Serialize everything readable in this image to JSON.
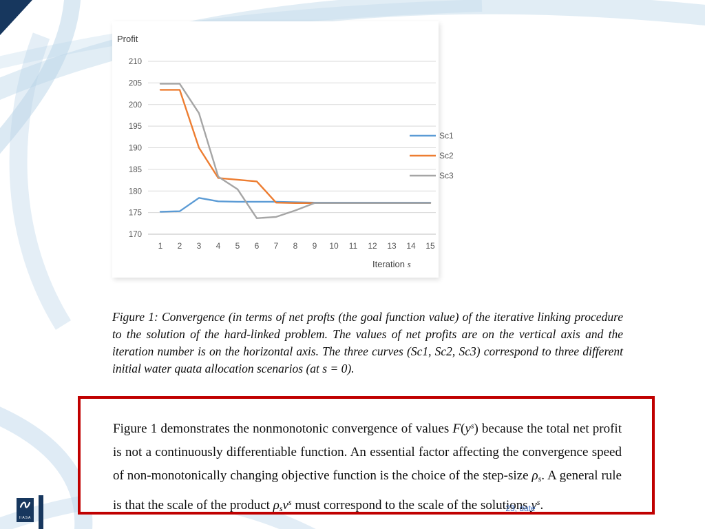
{
  "slide": {
    "footer_text": "23, date",
    "logo_text": "IIASA"
  },
  "chart_data": {
    "type": "line",
    "title": "Profit",
    "xlabel": "Iteration s",
    "xlabel_main": "Iteration",
    "xlabel_var": "s",
    "ylabel": "Profit",
    "x": [
      1,
      2,
      3,
      4,
      5,
      6,
      7,
      8,
      9,
      10,
      11,
      12,
      13,
      14,
      15
    ],
    "ylim": [
      170,
      210
    ],
    "yticks": [
      170,
      175,
      180,
      185,
      190,
      195,
      200,
      205,
      210
    ],
    "grid": "horizontal",
    "legend_position": "right",
    "series": [
      {
        "name": "Sc1",
        "color": "#5B9BD5",
        "values": [
          175.2,
          175.3,
          178.4,
          177.6,
          177.5,
          177.5,
          177.5,
          177.4,
          177.3,
          177.3,
          177.3,
          177.3,
          177.3,
          177.3,
          177.3
        ]
      },
      {
        "name": "Sc2",
        "color": "#ED7D31",
        "values": [
          203.4,
          203.4,
          190,
          183,
          182.6,
          182.2,
          177.3,
          177.2,
          177.2,
          177.2,
          177.2,
          177.2,
          177.2,
          177.2,
          177.2
        ]
      },
      {
        "name": "Sc3",
        "color": "#A5A5A5",
        "values": [
          204.8,
          204.8,
          198,
          183.3,
          180.4,
          173.7,
          174,
          175.5,
          177.2,
          177.2,
          177.2,
          177.2,
          177.2,
          177.2,
          177.2
        ]
      }
    ]
  },
  "caption": {
    "text": "Figure 1: Convergence (in terms of net profts (the goal function value) of the iterative linking procedure to the solution of the hard-linked problem. The values of net profits are on the vertical axis and the iteration number is on the horizontal axis. The three curves (Sc1, Sc2, Sc3) correspond to three different initial water quata allocation scenarios (at s = 0)."
  },
  "note": {
    "parts": {
      "p0": "Figure 1 demonstrates the nonmonotonic convergence of values ",
      "p1": "F",
      "p2": "(",
      "p3": "y",
      "p4": "s",
      "p5": ") because the total net profit is not a continuously differentiable function. An essential factor affecting the convergence speed of non-monotonically changing objective function is the choice of the step-size ",
      "p6": "ρ",
      "p7": "s",
      "p8": ". A general rule is that the scale of the product ",
      "p9": "ρ",
      "p10": "s",
      "p11": "ν",
      "p12": "s",
      "p13": " must correspond to the scale of the solutions ",
      "p14": "y",
      "p15": "s",
      "p16": "."
    }
  },
  "colors": {
    "note_border_red": "#C00000",
    "navy": "#17375E",
    "footer_blue": "#4472C4",
    "swoosh_blue": "#B7D3E8",
    "grid_gray": "#D9D9D9",
    "chart_text_gray": "#595959"
  }
}
